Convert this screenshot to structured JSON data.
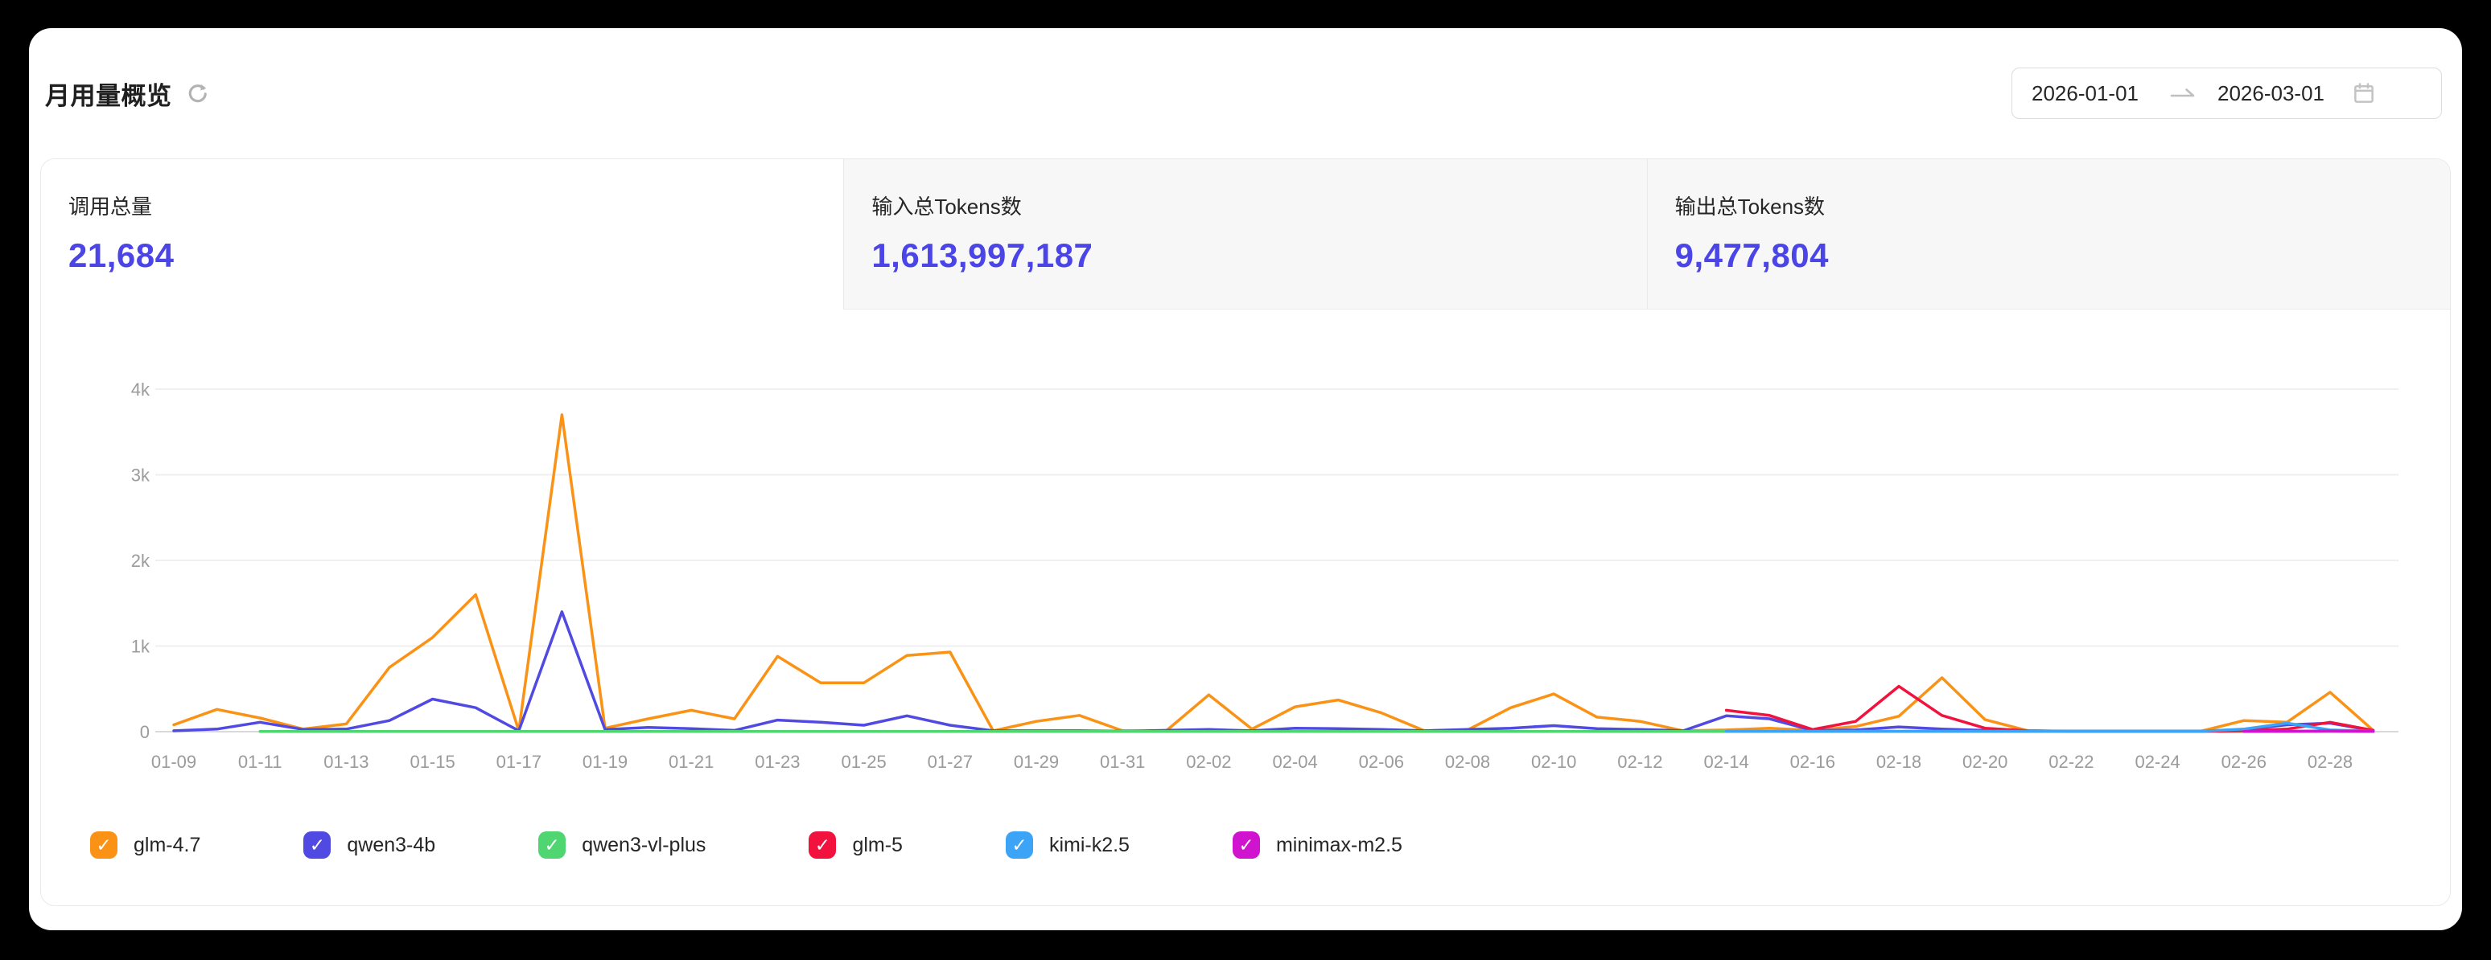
{
  "header": {
    "title": "月用量概览",
    "date_range": {
      "start": "2026-01-01",
      "end": "2026-03-01"
    }
  },
  "stats": {
    "cards": [
      {
        "label": "调用总量",
        "value": "21,684",
        "active": true
      },
      {
        "label": "输入总Tokens数",
        "value": "1,613,997,187",
        "active": false
      },
      {
        "label": "输出总Tokens数",
        "value": "9,477,804",
        "active": false
      }
    ],
    "value_color": "#4b45e8"
  },
  "chart_data": {
    "type": "line",
    "title": "",
    "xlabel": "",
    "ylabel": "",
    "ylim": [
      0,
      4000
    ],
    "grid": true,
    "legend_position": "bottom",
    "y_ticks": [
      {
        "v": 0,
        "label": "0"
      },
      {
        "v": 1000,
        "label": "1k"
      },
      {
        "v": 2000,
        "label": "2k"
      },
      {
        "v": 3000,
        "label": "3k"
      },
      {
        "v": 4000,
        "label": "4k"
      }
    ],
    "x_tick_every": 2,
    "x": [
      "01-09",
      "01-10",
      "01-11",
      "01-12",
      "01-13",
      "01-14",
      "01-15",
      "01-16",
      "01-17",
      "01-18",
      "01-19",
      "01-20",
      "01-21",
      "01-22",
      "01-23",
      "01-24",
      "01-25",
      "01-26",
      "01-27",
      "01-28",
      "01-29",
      "01-30",
      "01-31",
      "02-01",
      "02-02",
      "02-03",
      "02-04",
      "02-05",
      "02-06",
      "02-07",
      "02-08",
      "02-09",
      "02-10",
      "02-11",
      "02-12",
      "02-13",
      "02-14",
      "02-15",
      "02-16",
      "02-17",
      "02-18",
      "02-19",
      "02-20",
      "02-21",
      "02-22",
      "02-23",
      "02-24",
      "02-25",
      "02-26",
      "02-27",
      "02-28",
      "03-01"
    ],
    "series": [
      {
        "name": "glm-4.7",
        "color": "#FA9216",
        "values": [
          80,
          260,
          160,
          30,
          90,
          750,
          1100,
          1600,
          10,
          3700,
          40,
          150,
          250,
          150,
          880,
          570,
          570,
          890,
          930,
          10,
          120,
          190,
          10,
          5,
          430,
          30,
          290,
          370,
          220,
          10,
          20,
          280,
          440,
          170,
          120,
          10,
          20,
          40,
          15,
          60,
          180,
          630,
          140,
          10,
          5,
          5,
          5,
          5,
          130,
          110,
          460,
          15
        ]
      },
      {
        "name": "qwen3-4b",
        "color": "#514AE2",
        "values": [
          10,
          30,
          110,
          25,
          30,
          130,
          380,
          280,
          10,
          1400,
          25,
          50,
          35,
          15,
          135,
          110,
          75,
          185,
          75,
          10,
          10,
          10,
          5,
          15,
          25,
          10,
          40,
          35,
          25,
          10,
          25,
          40,
          70,
          35,
          25,
          10,
          185,
          150,
          15,
          20,
          55,
          30,
          15,
          5,
          5,
          5,
          5,
          5,
          25,
          80,
          100,
          10
        ]
      },
      {
        "name": "qwen3-vl-plus",
        "color": "#4FD671",
        "values": [
          null,
          null,
          2,
          2,
          2,
          2,
          2,
          2,
          2,
          2,
          2,
          2,
          2,
          2,
          2,
          2,
          2,
          2,
          2,
          2,
          2,
          2,
          2,
          2,
          2,
          2,
          2,
          2,
          2,
          2,
          2,
          2,
          2,
          2,
          2,
          2,
          2,
          2,
          2,
          2,
          2,
          2,
          2,
          2,
          2,
          2,
          2,
          2,
          2,
          2,
          2,
          2
        ]
      },
      {
        "name": "glm-5",
        "color": "#F1123E",
        "values": [
          null,
          null,
          null,
          null,
          null,
          null,
          null,
          null,
          null,
          null,
          null,
          null,
          null,
          null,
          null,
          null,
          null,
          null,
          null,
          null,
          null,
          null,
          null,
          null,
          null,
          null,
          null,
          null,
          null,
          null,
          null,
          null,
          null,
          null,
          null,
          null,
          250,
          190,
          25,
          120,
          530,
          190,
          40,
          10,
          5,
          5,
          5,
          5,
          10,
          30,
          110,
          15
        ]
      },
      {
        "name": "kimi-k2.5",
        "color": "#3CA4F6",
        "values": [
          null,
          null,
          null,
          null,
          null,
          null,
          null,
          null,
          null,
          null,
          null,
          null,
          null,
          null,
          null,
          null,
          null,
          null,
          null,
          null,
          null,
          null,
          null,
          null,
          null,
          null,
          null,
          null,
          null,
          null,
          null,
          null,
          null,
          null,
          null,
          null,
          5,
          5,
          5,
          5,
          5,
          5,
          5,
          5,
          5,
          5,
          5,
          5,
          30,
          100,
          20,
          5
        ]
      },
      {
        "name": "minimax-m2.5",
        "color": "#D013CE",
        "values": [
          null,
          null,
          null,
          null,
          null,
          null,
          null,
          null,
          null,
          null,
          null,
          null,
          null,
          null,
          null,
          null,
          null,
          null,
          null,
          null,
          null,
          null,
          null,
          null,
          null,
          null,
          null,
          null,
          null,
          null,
          null,
          null,
          null,
          null,
          null,
          null,
          null,
          null,
          null,
          null,
          null,
          null,
          null,
          null,
          null,
          null,
          null,
          null,
          3,
          5,
          8,
          4
        ]
      }
    ],
    "axis_colors": {
      "grid": "#efefef",
      "zero_line": "#d9d9d9",
      "tick_text": "#9b9b9b"
    }
  },
  "legend": {
    "check_glyph": "✓"
  }
}
